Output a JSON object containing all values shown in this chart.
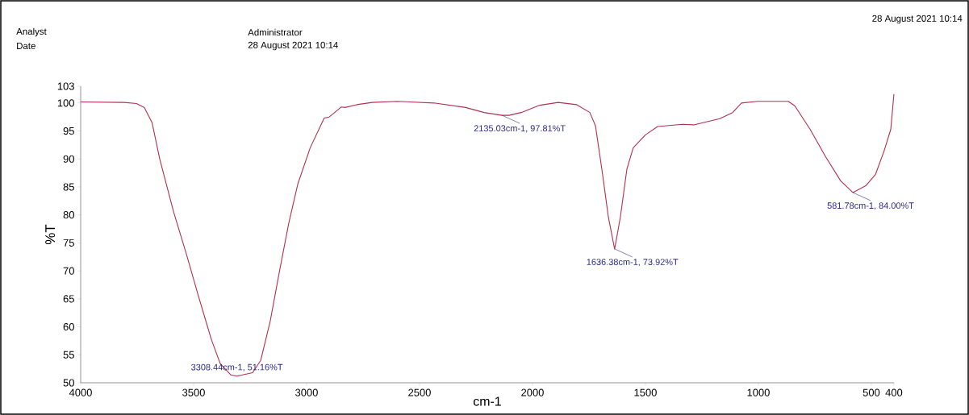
{
  "chart_data": {
    "type": "line",
    "xlabel": "cm-1",
    "ylabel": "%T",
    "xlim": [
      4000,
      400
    ],
    "ylim": [
      50,
      103
    ],
    "xticks": [
      4000,
      3500,
      3000,
      2500,
      2000,
      1500,
      1000,
      500,
      400
    ],
    "yticks": [
      50,
      55,
      60,
      65,
      70,
      75,
      80,
      85,
      90,
      95,
      100,
      103
    ],
    "grid": false,
    "marker": "none",
    "line_style": "solid",
    "series": [
      {
        "color": "#b0304f",
        "x": [
          4000,
          3807,
          3753,
          3718,
          3684,
          3650,
          3589,
          3532,
          3478,
          3422,
          3382,
          3335,
          3308.44,
          3239,
          3203,
          3161,
          3121,
          3079,
          3039,
          2984,
          2922,
          2900,
          2867,
          2846,
          2830,
          2778,
          2710,
          2600,
          2436,
          2296,
          2214,
          2135.03,
          2104,
          2050,
          1968,
          1886,
          1804,
          1746,
          1721,
          1693,
          1664,
          1636.38,
          1611,
          1582,
          1554,
          1500,
          1446,
          1336,
          1286,
          1171,
          1114,
          1075,
          1004,
          868,
          839,
          771,
          704,
          636,
          581.78,
          525,
          482,
          443,
          414,
          400
        ],
        "values": [
          100.2,
          100.1,
          99.9,
          99.2,
          96.5,
          90,
          80.6,
          73,
          65.4,
          57.8,
          53.4,
          51.4,
          51.2,
          51.8,
          54,
          61,
          69.7,
          78.5,
          85.5,
          92,
          97.3,
          97.5,
          98.6,
          99.3,
          99.2,
          99.7,
          100.1,
          100.3,
          100.0,
          99.2,
          98.3,
          97.8,
          97.8,
          98.3,
          99.6,
          100.1,
          99.7,
          98.3,
          95.9,
          88.2,
          79.6,
          73.9,
          79.6,
          88.2,
          92,
          94.3,
          95.8,
          96.2,
          96.1,
          97.2,
          98.3,
          100,
          100.3,
          100.3,
          99.5,
          95.3,
          90.5,
          86.1,
          84.0,
          85.2,
          87.2,
          91.5,
          95.3,
          101.6
        ]
      }
    ],
    "annotations": [
      "Analyst",
      "Administrator",
      "Date",
      "28 August 2021 10:14",
      "28 August 2021 10:14",
      {
        "text": "3308.44cm-1, 51.16%T",
        "x": 3308.44,
        "y": 51.16
      },
      {
        "text": "2135.03cm-1, 97.81%T",
        "x": 2135.03,
        "y": 97.81
      },
      {
        "text": "1636.38cm-1, 73.92%T",
        "x": 1636.38,
        "y": 73.92
      },
      {
        "text": "581.78cm-1, 84.00%T",
        "x": 581.78,
        "y": 84.0
      }
    ]
  }
}
